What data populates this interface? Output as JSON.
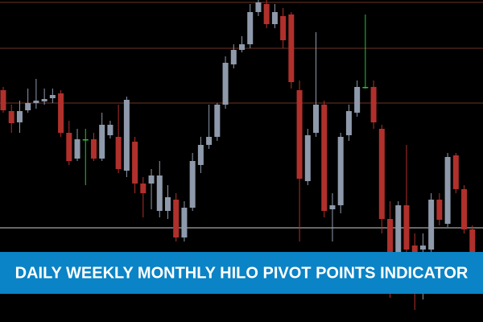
{
  "chart_data": {
    "type": "candlestick",
    "title": "DAILY WEEKLY MONTHLY HILO PIVOT POINTS INDICATOR",
    "ylim": [
      0,
      100
    ],
    "up_color": "#8e9aab",
    "down_color": "#b0302c",
    "doji_color": "#2fbf3a",
    "open": [
      72,
      65.5,
      62,
      65.75,
      68,
      68.5,
      69.5,
      71,
      58.75,
      50.75,
      56.75,
      56.75,
      50.75,
      58,
      57.5,
      47,
      56,
      43,
      43,
      34.5,
      34.5,
      38,
      26.25,
      35.5,
      48.75,
      55,
      57.5,
      67.5,
      80,
      84.5,
      86.25,
      96.25,
      98.75,
      92.5,
      95,
      95.5,
      72,
      43.75,
      58.75,
      67.5,
      35,
      36.25,
      58,
      65,
      73,
      73,
      60,
      32,
      21.25,
      36.25,
      23.75,
      22.5,
      22.5,
      38,
      30.5,
      51.75,
      41.25,
      28.75
    ],
    "high": [
      73,
      67.5,
      68.75,
      72.5,
      75.5,
      72.5,
      72.5,
      72,
      62.5,
      60,
      60,
      58.75,
      65,
      62.5,
      67.5,
      70,
      57.5,
      45,
      47.5,
      50,
      42.5,
      40,
      37.5,
      52.5,
      57.5,
      67.5,
      68,
      82.5,
      86.25,
      88.75,
      98.75,
      100,
      100,
      98.75,
      97.5,
      96.25,
      75,
      60,
      90,
      68.75,
      40,
      58.75,
      67.5,
      75,
      95.5,
      75,
      61.25,
      37.5,
      37.5,
      55,
      27.5,
      27.5,
      40,
      40,
      52.5,
      52.5,
      42.5,
      30
    ],
    "low": [
      65,
      58.75,
      58.75,
      65,
      66.25,
      67.5,
      68,
      57.5,
      48.75,
      50,
      42.5,
      50,
      50,
      57,
      46.25,
      45,
      40,
      32.5,
      35,
      32.5,
      32,
      25,
      25,
      34.5,
      46.25,
      53.75,
      56.25,
      66.25,
      78.75,
      83.75,
      85,
      95,
      91.25,
      91.25,
      85,
      72.5,
      25,
      42.5,
      57.5,
      32.5,
      25,
      33.75,
      56.25,
      63.75,
      72.5,
      60,
      27.5,
      7.5,
      20,
      20,
      3.75,
      7,
      21.25,
      30,
      29.5,
      40,
      27.5,
      20
    ],
    "close": [
      65.75,
      61.75,
      65.5,
      68,
      68.75,
      69.25,
      70.5,
      58.75,
      50,
      56.75,
      56.75,
      50.75,
      61.25,
      61.25,
      47.5,
      69,
      43,
      40,
      45.5,
      45.5,
      38.75,
      26.25,
      35.5,
      50,
      55,
      57.5,
      67.5,
      80.5,
      84.5,
      86.25,
      96.25,
      99.25,
      92.5,
      96.25,
      87.5,
      74.5,
      44.5,
      58,
      67.5,
      34.5,
      36.25,
      57.5,
      65.5,
      73,
      73,
      62,
      32,
      21.25,
      36.25,
      22.5,
      21.25,
      23.75,
      38,
      31.75,
      51.25,
      41.25,
      28.75,
      21.25
    ],
    "levels": [
      99.25,
      85,
      68,
      29.25
    ],
    "level_colors": [
      "#6e3426",
      "#6e3426",
      "#6e3426",
      "#cfcfcf"
    ],
    "banner_color": "#0a84c6"
  }
}
